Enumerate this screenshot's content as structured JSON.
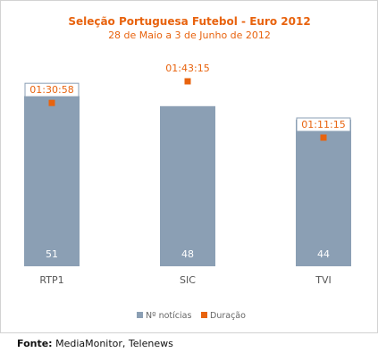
{
  "chart_data": {
    "type": "bar",
    "title": "Seleção Portuguesa Futebol - Euro 2012",
    "subtitle": "28 de Maio a 3 de Junho de 2012",
    "categories": [
      "RTP1",
      "SIC",
      "TVI"
    ],
    "series": [
      {
        "name": "Nº notícias",
        "kind": "bar",
        "values": [
          51,
          48,
          44
        ],
        "color": "#8b9fb4"
      },
      {
        "name": "Duração",
        "kind": "marker",
        "values": [
          "01:30:58",
          "01:43:15",
          "01:11:15"
        ],
        "seconds": [
          5458,
          6195,
          4275
        ],
        "color": "#e8630e"
      }
    ],
    "title_color": "#e8630e",
    "label_color": "#e8630e",
    "ylim": [
      0,
      60
    ],
    "legend_position": "bottom",
    "grid": false
  },
  "source": {
    "label": "Fonte:",
    "text": " MediaMonitor, Telenews"
  }
}
